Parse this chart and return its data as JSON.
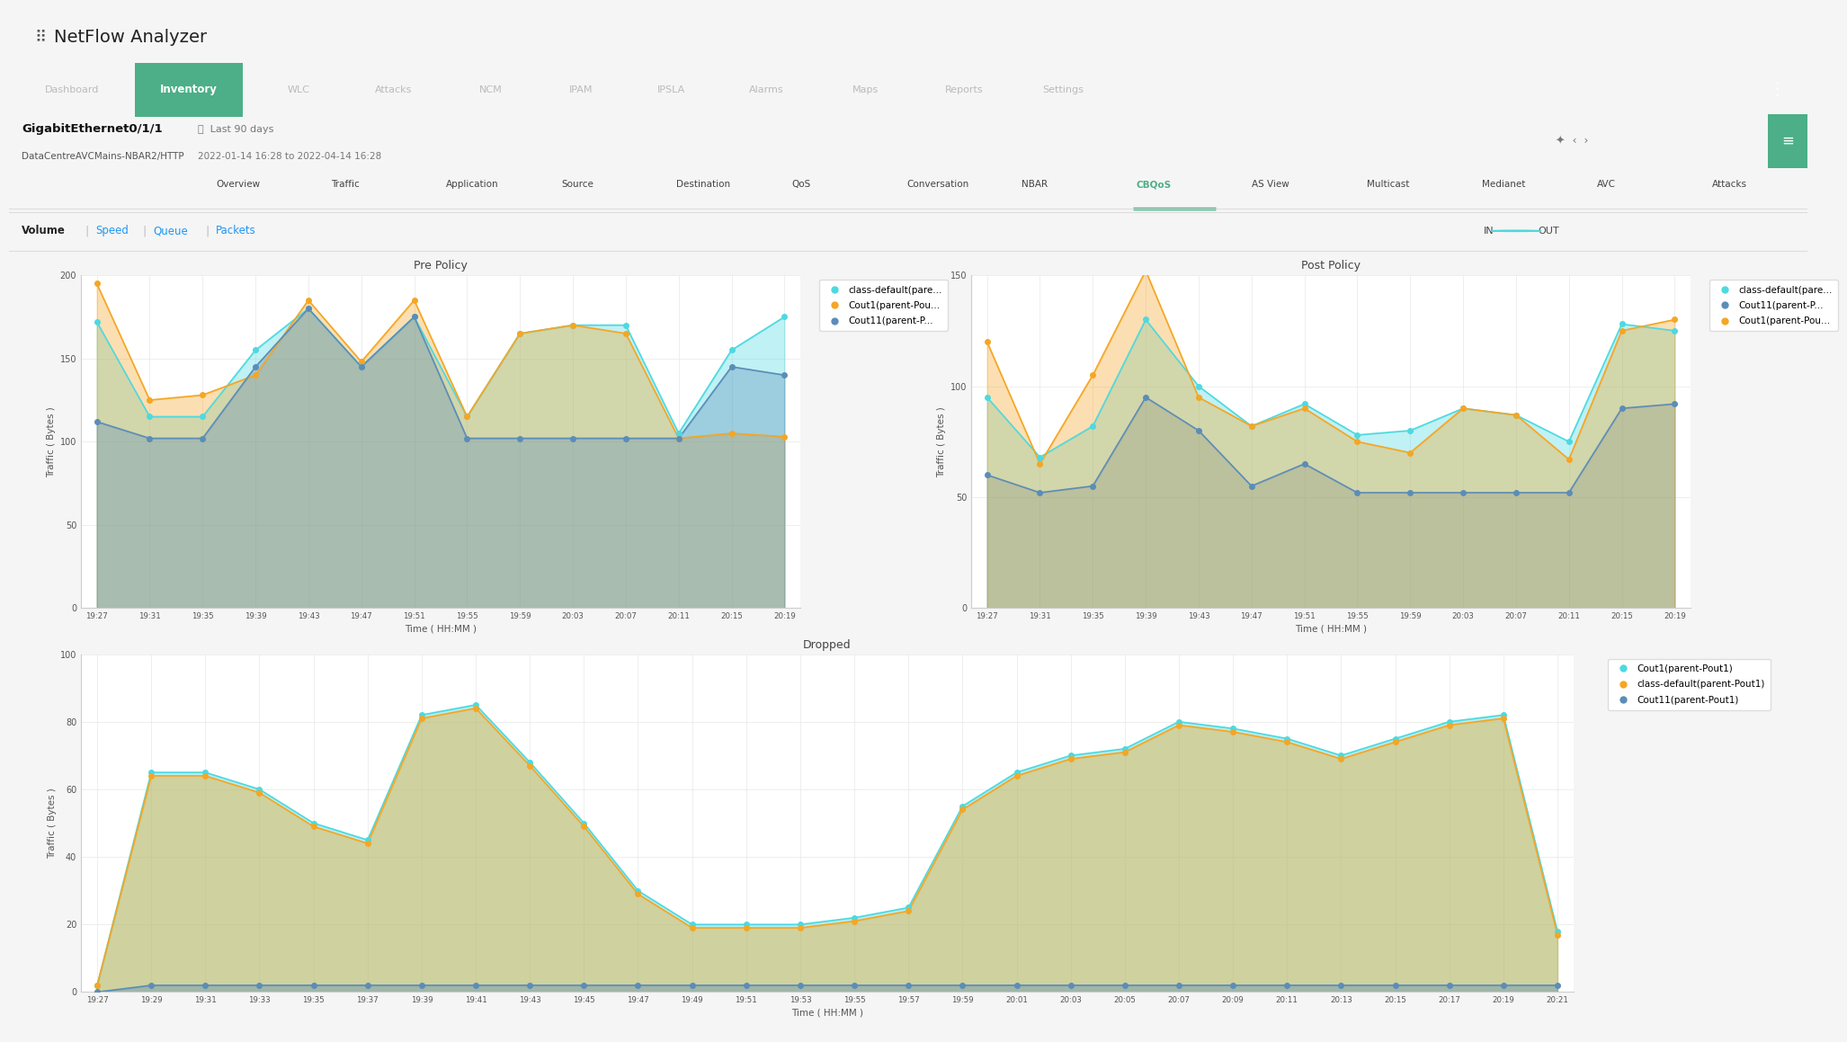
{
  "pre_policy": {
    "title": "Pre Policy",
    "xlabel": "Time ( HH:MM )",
    "ylabel": "Traffic ( Bytes )",
    "time_labels": [
      "19:27",
      "19:31",
      "19:35",
      "19:39",
      "19:43",
      "19:47",
      "19:51",
      "19:55",
      "19:59",
      "20:03",
      "20:07",
      "20:11",
      "20:15",
      "20:19"
    ],
    "ylim": [
      0,
      200
    ],
    "yticks": [
      0,
      50,
      100,
      150,
      200
    ],
    "series": {
      "class_default": [
        172,
        115,
        115,
        155,
        180,
        145,
        175,
        115,
        165,
        170,
        170,
        105,
        155,
        175
      ],
      "cout1": [
        195,
        125,
        128,
        140,
        185,
        148,
        185,
        115,
        165,
        170,
        165,
        102,
        105,
        103
      ],
      "cout11": [
        112,
        102,
        102,
        145,
        180,
        145,
        175,
        102,
        102,
        102,
        102,
        102,
        145,
        140
      ]
    },
    "colors": {
      "class_default": "#4DD9E0",
      "cout1": "#F5A623",
      "cout11": "#5B8DB8"
    },
    "fill_alpha": 0.35,
    "legend_keys": [
      "class_default",
      "cout1",
      "cout11"
    ],
    "legend": [
      "class-default(pare...",
      "Cout1(parent-Pou...",
      "Cout11(parent-P..."
    ]
  },
  "post_policy": {
    "title": "Post Policy",
    "xlabel": "Time ( HH:MM )",
    "ylabel": "Traffic ( Bytes )",
    "time_labels": [
      "19:27",
      "19:31",
      "19:35",
      "19:39",
      "19:43",
      "19:47",
      "19:51",
      "19:55",
      "19:59",
      "20:03",
      "20:07",
      "20:11",
      "20:15",
      "20:19"
    ],
    "ylim": [
      0,
      150
    ],
    "yticks": [
      0,
      50,
      100,
      150
    ],
    "series": {
      "class_default": [
        95,
        68,
        82,
        130,
        100,
        82,
        92,
        78,
        80,
        90,
        87,
        75,
        128,
        125
      ],
      "cout1": [
        120,
        65,
        105,
        152,
        95,
        82,
        90,
        75,
        70,
        90,
        87,
        67,
        125,
        130
      ],
      "cout11": [
        60,
        52,
        55,
        95,
        80,
        55,
        65,
        52,
        52,
        52,
        52,
        52,
        90,
        92
      ]
    },
    "colors": {
      "class_default": "#4DD9E0",
      "cout1": "#F5A623",
      "cout11": "#5B8DB8"
    },
    "fill_alpha": 0.35,
    "legend_keys": [
      "class_default",
      "cout11",
      "cout1"
    ],
    "legend": [
      "class-default(pare...",
      "Cout11(parent-P...",
      "Cout1(parent-Pou..."
    ]
  },
  "dropped": {
    "title": "Dropped",
    "xlabel": "Time ( HH:MM )",
    "ylabel": "Traffic ( Bytes )",
    "time_labels": [
      "19:27",
      "19:29",
      "19:31",
      "19:33",
      "19:35",
      "19:37",
      "19:39",
      "19:41",
      "19:43",
      "19:45",
      "19:47",
      "19:49",
      "19:51",
      "19:53",
      "19:55",
      "19:57",
      "19:59",
      "20:01",
      "20:03",
      "20:05",
      "20:07",
      "20:09",
      "20:11",
      "20:13",
      "20:15",
      "20:17",
      "20:19",
      "20:21"
    ],
    "ylim": [
      0,
      100
    ],
    "yticks": [
      0,
      20,
      40,
      60,
      80,
      100
    ],
    "series": {
      "cout1": [
        2,
        65,
        65,
        60,
        50,
        45,
        82,
        85,
        68,
        50,
        30,
        20,
        20,
        20,
        22,
        25,
        55,
        65,
        70,
        72,
        80,
        78,
        75,
        70,
        75,
        80,
        82,
        18
      ],
      "class_default": [
        2,
        64,
        64,
        59,
        49,
        44,
        81,
        84,
        67,
        49,
        29,
        19,
        19,
        19,
        21,
        24,
        54,
        64,
        69,
        71,
        79,
        77,
        74,
        69,
        74,
        79,
        81,
        17
      ],
      "cout11": [
        0,
        2,
        2,
        2,
        2,
        2,
        2,
        2,
        2,
        2,
        2,
        2,
        2,
        2,
        2,
        2,
        2,
        2,
        2,
        2,
        2,
        2,
        2,
        2,
        2,
        2,
        2,
        2
      ]
    },
    "colors": {
      "cout1": "#4DD9E0",
      "class_default": "#F5A623",
      "cout11": "#5B8DB8"
    },
    "fill_alpha": 0.4,
    "legend_keys": [
      "cout1",
      "class_default",
      "cout11"
    ],
    "legend": [
      "Cout1(parent-Pout1)",
      "class-default(parent-Pout1)",
      "Cout11(parent-Pout1)"
    ]
  },
  "bg_color": "#f5f5f5",
  "plot_bg": "#ffffff",
  "header_bg": "#eeeeee",
  "nav_bg": "#2d2d2d",
  "nav_active_bg": "#4CAF87",
  "grid_color": "#e8e8e8",
  "header_items": [
    "Dashboard",
    "Inventory",
    "WLC",
    "Attacks",
    "NCM",
    "IPAM",
    "IPSLA",
    "Alarms",
    "Maps",
    "Reports",
    "Settings"
  ],
  "header_active": "Inventory",
  "tab_items": [
    "Overview",
    "Traffic",
    "Application",
    "Source",
    "Destination",
    "QoS",
    "Conversation",
    "NBAR",
    "CBQoS",
    "AS View",
    "Multicast",
    "Medianet",
    "AVC",
    "Attacks"
  ],
  "tab_active": "CBQoS",
  "filter_items": [
    "Volume",
    "Speed",
    "Queue",
    "Packets"
  ],
  "filter_bold": "Volume",
  "breadcrumb_title": "GigabitEthernet0/1/1",
  "breadcrumb_sub": "DataCentreAVCMains-NBAR2/HTTP",
  "breadcrumb_range_title": "Last 90 days",
  "breadcrumb_range": "2022-01-14 16:28 to 2022-04-14 16:28",
  "app_title": "NetFlow Analyzer"
}
